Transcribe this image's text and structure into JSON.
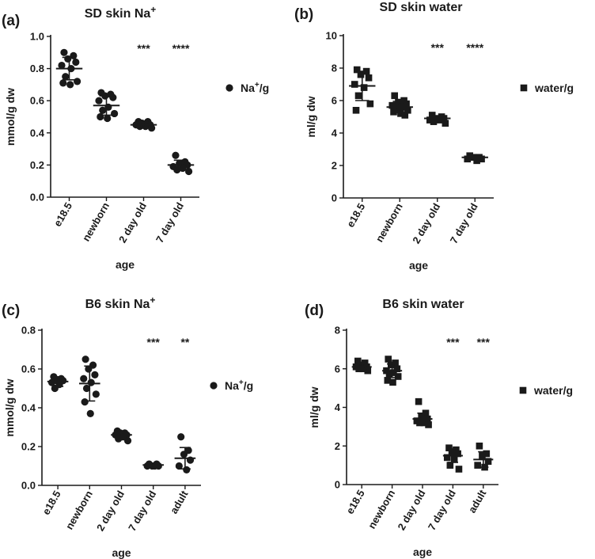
{
  "chart_data": [
    {
      "type": "scatter",
      "panel": "(a)",
      "title": "SD skin Na",
      "title_sup": "+",
      "xlabel": "age",
      "ylabel": "mmol/g dw",
      "ylim": [
        0,
        1.0
      ],
      "yticks": [
        "0.0",
        "0.2",
        "0.4",
        "0.6",
        "0.8",
        "1.0"
      ],
      "categories": [
        "e18.5",
        "newborn",
        "2 day old",
        "7 day old"
      ],
      "marker": "circle",
      "legend": {
        "label": "Na",
        "sup": "+",
        "suffix": "/g",
        "position": "right"
      },
      "significance": [
        "",
        "",
        "***",
        "****"
      ],
      "series": [
        {
          "name": "Na+/g",
          "points": [
            [
              0.9,
              0.88,
              0.86,
              0.84,
              0.82,
              0.8,
              0.75,
              0.72,
              0.71,
              0.7
            ],
            [
              0.65,
              0.64,
              0.63,
              0.62,
              0.6,
              0.56,
              0.54,
              0.52,
              0.5,
              0.49
            ],
            [
              0.47,
              0.47,
              0.46,
              0.45,
              0.45,
              0.44,
              0.44,
              0.43
            ],
            [
              0.26,
              0.22,
              0.21,
              0.2,
              0.19,
              0.18,
              0.17,
              0.16
            ]
          ],
          "mean": [
            0.8,
            0.57,
            0.45,
            0.2
          ],
          "sd": [
            0.07,
            0.06,
            0.015,
            0.03
          ]
        }
      ]
    },
    {
      "type": "scatter",
      "panel": "(b)",
      "title": "SD skin water",
      "xlabel": "age",
      "ylabel": "ml/g dw",
      "ylim": [
        0,
        10
      ],
      "yticks": [
        "0",
        "2",
        "4",
        "6",
        "8",
        "10"
      ],
      "categories": [
        "e18.5",
        "newborn",
        "2 day old",
        "7 day old"
      ],
      "marker": "square",
      "legend": {
        "label": "water/g",
        "position": "right"
      },
      "significance": [
        "",
        "",
        "***",
        "****"
      ],
      "series": [
        {
          "name": "water/g",
          "points": [
            [
              7.9,
              7.8,
              7.6,
              7.4,
              7.0,
              6.8,
              6.3,
              5.8,
              5.4
            ],
            [
              6.3,
              6.0,
              5.9,
              5.8,
              5.7,
              5.6,
              5.5,
              5.4,
              5.3,
              5.2,
              5.1
            ],
            [
              5.1,
              5.0,
              4.9,
              4.9,
              4.8,
              4.8,
              4.7,
              4.6
            ],
            [
              2.6,
              2.5,
              2.5,
              2.4,
              2.4,
              2.3
            ]
          ],
          "mean": [
            6.9,
            5.6,
            4.9,
            2.5
          ],
          "sd": [
            0.9,
            0.35,
            0.15,
            0.15
          ]
        }
      ]
    },
    {
      "type": "scatter",
      "panel": "(c)",
      "title": "B6 skin Na",
      "title_sup": "+",
      "xlabel": "age",
      "ylabel": "mmol/g dw",
      "ylim": [
        0,
        0.8
      ],
      "yticks": [
        "0.0",
        "0.2",
        "0.4",
        "0.6",
        "0.8"
      ],
      "categories": [
        "e18.5",
        "newborn",
        "2 day old",
        "7 day old",
        "adult"
      ],
      "marker": "circle",
      "legend": {
        "label": "Na",
        "sup": "+",
        "suffix": "/g",
        "position": "right"
      },
      "significance": [
        "",
        "",
        "",
        "***",
        "**"
      ],
      "series": [
        {
          "name": "Na+/g",
          "points": [
            [
              0.56,
              0.55,
              0.54,
              0.54,
              0.53,
              0.52,
              0.5
            ],
            [
              0.65,
              0.62,
              0.6,
              0.57,
              0.55,
              0.53,
              0.5,
              0.47,
              0.43,
              0.37
            ],
            [
              0.28,
              0.27,
              0.27,
              0.26,
              0.26,
              0.25,
              0.24,
              0.23
            ],
            [
              0.11,
              0.11,
              0.1,
              0.1,
              0.1,
              0.1
            ],
            [
              0.25,
              0.18,
              0.16,
              0.13,
              0.1,
              0.08
            ]
          ],
          "mean": [
            0.535,
            0.525,
            0.26,
            0.105,
            0.14
          ],
          "sd": [
            0.025,
            0.09,
            0.02,
            0.008,
            0.055
          ]
        }
      ]
    },
    {
      "type": "scatter",
      "panel": "(d)",
      "title": "B6 skin water",
      "xlabel": "age",
      "ylabel": "ml/g dw",
      "ylim": [
        0,
        8
      ],
      "yticks": [
        "0",
        "2",
        "4",
        "6",
        "8"
      ],
      "categories": [
        "e18.5",
        "newborn",
        "2 day old",
        "7 day old",
        "adult"
      ],
      "marker": "square",
      "legend": {
        "label": "water/g",
        "position": "right"
      },
      "significance": [
        "",
        "",
        "",
        "***",
        "***"
      ],
      "series": [
        {
          "name": "water/g",
          "points": [
            [
              6.4,
              6.3,
              6.2,
              6.1,
              6.1,
              6.0,
              6.0,
              5.9
            ],
            [
              6.5,
              6.3,
              6.2,
              6.0,
              5.9,
              5.8,
              5.7,
              5.6,
              5.4,
              5.3
            ],
            [
              4.3,
              3.7,
              3.5,
              3.4,
              3.3,
              3.2,
              3.2,
              3.1
            ],
            [
              1.9,
              1.8,
              1.7,
              1.6,
              1.4,
              1.3,
              1.0,
              0.8
            ],
            [
              2.0,
              1.6,
              1.5,
              1.2,
              1.0,
              0.9
            ]
          ],
          "mean": [
            6.1,
            5.9,
            3.4,
            1.5,
            1.3
          ],
          "sd": [
            0.15,
            0.35,
            0.3,
            0.35,
            0.4
          ]
        }
      ]
    }
  ]
}
